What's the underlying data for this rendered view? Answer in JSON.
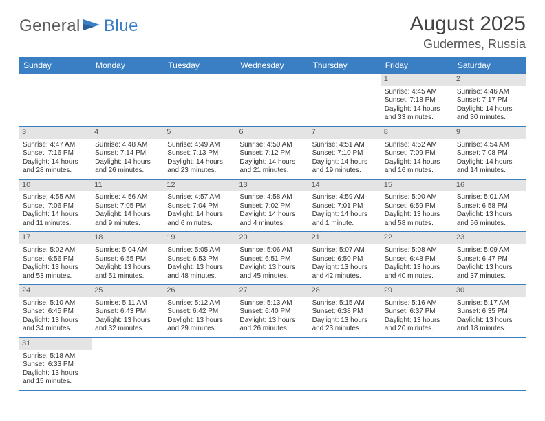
{
  "logo": {
    "general": "General",
    "blue": "Blue"
  },
  "header": {
    "title": "August 2025",
    "location": "Gudermes, Russia"
  },
  "weekdays": [
    "Sunday",
    "Monday",
    "Tuesday",
    "Wednesday",
    "Thursday",
    "Friday",
    "Saturday"
  ],
  "colors": {
    "brand": "#3a7fc4",
    "daybar": "#e4e4e4",
    "text": "#333333",
    "bg": "#ffffff"
  },
  "days": {
    "1": {
      "sunrise": "Sunrise: 4:45 AM",
      "sunset": "Sunset: 7:18 PM",
      "day1": "Daylight: 14 hours",
      "day2": "and 33 minutes."
    },
    "2": {
      "sunrise": "Sunrise: 4:46 AM",
      "sunset": "Sunset: 7:17 PM",
      "day1": "Daylight: 14 hours",
      "day2": "and 30 minutes."
    },
    "3": {
      "sunrise": "Sunrise: 4:47 AM",
      "sunset": "Sunset: 7:16 PM",
      "day1": "Daylight: 14 hours",
      "day2": "and 28 minutes."
    },
    "4": {
      "sunrise": "Sunrise: 4:48 AM",
      "sunset": "Sunset: 7:14 PM",
      "day1": "Daylight: 14 hours",
      "day2": "and 26 minutes."
    },
    "5": {
      "sunrise": "Sunrise: 4:49 AM",
      "sunset": "Sunset: 7:13 PM",
      "day1": "Daylight: 14 hours",
      "day2": "and 23 minutes."
    },
    "6": {
      "sunrise": "Sunrise: 4:50 AM",
      "sunset": "Sunset: 7:12 PM",
      "day1": "Daylight: 14 hours",
      "day2": "and 21 minutes."
    },
    "7": {
      "sunrise": "Sunrise: 4:51 AM",
      "sunset": "Sunset: 7:10 PM",
      "day1": "Daylight: 14 hours",
      "day2": "and 19 minutes."
    },
    "8": {
      "sunrise": "Sunrise: 4:52 AM",
      "sunset": "Sunset: 7:09 PM",
      "day1": "Daylight: 14 hours",
      "day2": "and 16 minutes."
    },
    "9": {
      "sunrise": "Sunrise: 4:54 AM",
      "sunset": "Sunset: 7:08 PM",
      "day1": "Daylight: 14 hours",
      "day2": "and 14 minutes."
    },
    "10": {
      "sunrise": "Sunrise: 4:55 AM",
      "sunset": "Sunset: 7:06 PM",
      "day1": "Daylight: 14 hours",
      "day2": "and 11 minutes."
    },
    "11": {
      "sunrise": "Sunrise: 4:56 AM",
      "sunset": "Sunset: 7:05 PM",
      "day1": "Daylight: 14 hours",
      "day2": "and 9 minutes."
    },
    "12": {
      "sunrise": "Sunrise: 4:57 AM",
      "sunset": "Sunset: 7:04 PM",
      "day1": "Daylight: 14 hours",
      "day2": "and 6 minutes."
    },
    "13": {
      "sunrise": "Sunrise: 4:58 AM",
      "sunset": "Sunset: 7:02 PM",
      "day1": "Daylight: 14 hours",
      "day2": "and 4 minutes."
    },
    "14": {
      "sunrise": "Sunrise: 4:59 AM",
      "sunset": "Sunset: 7:01 PM",
      "day1": "Daylight: 14 hours",
      "day2": "and 1 minute."
    },
    "15": {
      "sunrise": "Sunrise: 5:00 AM",
      "sunset": "Sunset: 6:59 PM",
      "day1": "Daylight: 13 hours",
      "day2": "and 58 minutes."
    },
    "16": {
      "sunrise": "Sunrise: 5:01 AM",
      "sunset": "Sunset: 6:58 PM",
      "day1": "Daylight: 13 hours",
      "day2": "and 56 minutes."
    },
    "17": {
      "sunrise": "Sunrise: 5:02 AM",
      "sunset": "Sunset: 6:56 PM",
      "day1": "Daylight: 13 hours",
      "day2": "and 53 minutes."
    },
    "18": {
      "sunrise": "Sunrise: 5:04 AM",
      "sunset": "Sunset: 6:55 PM",
      "day1": "Daylight: 13 hours",
      "day2": "and 51 minutes."
    },
    "19": {
      "sunrise": "Sunrise: 5:05 AM",
      "sunset": "Sunset: 6:53 PM",
      "day1": "Daylight: 13 hours",
      "day2": "and 48 minutes."
    },
    "20": {
      "sunrise": "Sunrise: 5:06 AM",
      "sunset": "Sunset: 6:51 PM",
      "day1": "Daylight: 13 hours",
      "day2": "and 45 minutes."
    },
    "21": {
      "sunrise": "Sunrise: 5:07 AM",
      "sunset": "Sunset: 6:50 PM",
      "day1": "Daylight: 13 hours",
      "day2": "and 42 minutes."
    },
    "22": {
      "sunrise": "Sunrise: 5:08 AM",
      "sunset": "Sunset: 6:48 PM",
      "day1": "Daylight: 13 hours",
      "day2": "and 40 minutes."
    },
    "23": {
      "sunrise": "Sunrise: 5:09 AM",
      "sunset": "Sunset: 6:47 PM",
      "day1": "Daylight: 13 hours",
      "day2": "and 37 minutes."
    },
    "24": {
      "sunrise": "Sunrise: 5:10 AM",
      "sunset": "Sunset: 6:45 PM",
      "day1": "Daylight: 13 hours",
      "day2": "and 34 minutes."
    },
    "25": {
      "sunrise": "Sunrise: 5:11 AM",
      "sunset": "Sunset: 6:43 PM",
      "day1": "Daylight: 13 hours",
      "day2": "and 32 minutes."
    },
    "26": {
      "sunrise": "Sunrise: 5:12 AM",
      "sunset": "Sunset: 6:42 PM",
      "day1": "Daylight: 13 hours",
      "day2": "and 29 minutes."
    },
    "27": {
      "sunrise": "Sunrise: 5:13 AM",
      "sunset": "Sunset: 6:40 PM",
      "day1": "Daylight: 13 hours",
      "day2": "and 26 minutes."
    },
    "28": {
      "sunrise": "Sunrise: 5:15 AM",
      "sunset": "Sunset: 6:38 PM",
      "day1": "Daylight: 13 hours",
      "day2": "and 23 minutes."
    },
    "29": {
      "sunrise": "Sunrise: 5:16 AM",
      "sunset": "Sunset: 6:37 PM",
      "day1": "Daylight: 13 hours",
      "day2": "and 20 minutes."
    },
    "30": {
      "sunrise": "Sunrise: 5:17 AM",
      "sunset": "Sunset: 6:35 PM",
      "day1": "Daylight: 13 hours",
      "day2": "and 18 minutes."
    },
    "31": {
      "sunrise": "Sunrise: 5:18 AM",
      "sunset": "Sunset: 6:33 PM",
      "day1": "Daylight: 13 hours",
      "day2": "and 15 minutes."
    }
  },
  "layout": [
    [
      null,
      null,
      null,
      null,
      null,
      "1",
      "2"
    ],
    [
      "3",
      "4",
      "5",
      "6",
      "7",
      "8",
      "9"
    ],
    [
      "10",
      "11",
      "12",
      "13",
      "14",
      "15",
      "16"
    ],
    [
      "17",
      "18",
      "19",
      "20",
      "21",
      "22",
      "23"
    ],
    [
      "24",
      "25",
      "26",
      "27",
      "28",
      "29",
      "30"
    ],
    [
      "31",
      null,
      null,
      null,
      null,
      null,
      null
    ]
  ]
}
